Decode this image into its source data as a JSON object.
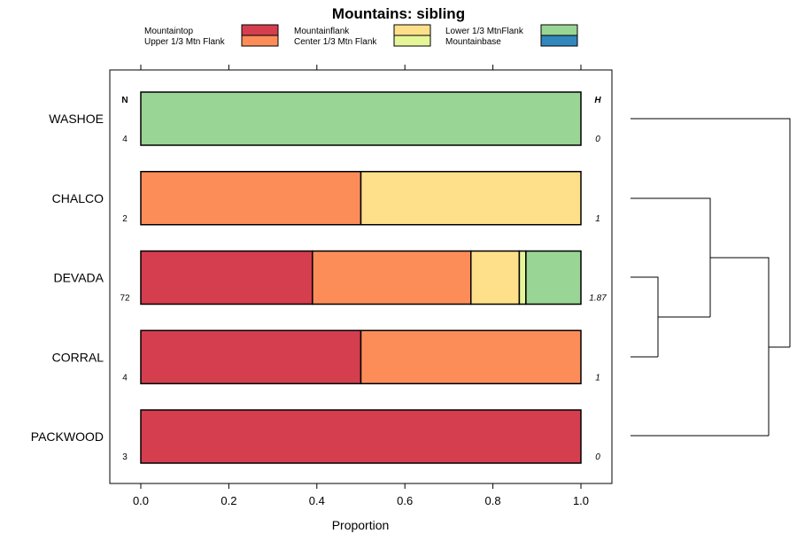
{
  "chart_data": {
    "type": "bar",
    "orientation": "horizontal",
    "stacked": true,
    "title": "Mountains: sibling",
    "xlabel": "Proportion",
    "ylabel": "",
    "xlim": [
      -0.07,
      1.07
    ],
    "x_ticks": [
      "0.0",
      "0.2",
      "0.4",
      "0.6",
      "0.8",
      "1.0"
    ],
    "x_tick_values": [
      0,
      0.2,
      0.4,
      0.6,
      0.8,
      1.0
    ],
    "categories": [
      "WASHOE",
      "CHALCO",
      "DEVADA",
      "CORRAL",
      "PACKWOOD"
    ],
    "series": [
      {
        "name": "Mountaintop",
        "color": "#d53e4f",
        "values": [
          0,
          0,
          0.39,
          0.5,
          1.0
        ]
      },
      {
        "name": "Upper 1/3 Mtn Flank",
        "color": "#fc8d59",
        "values": [
          0,
          0.5,
          0.36,
          0.5,
          0
        ]
      },
      {
        "name": "Mountainflank",
        "color": "#fee08b",
        "values": [
          0,
          0.5,
          0.11,
          0,
          0
        ]
      },
      {
        "name": "Center 1/3 Mtn Flank",
        "color": "#e6f598",
        "values": [
          0,
          0,
          0.015,
          0,
          0
        ]
      },
      {
        "name": "Lower 1/3 MtnFlank",
        "color": "#99d594",
        "values": [
          1.0,
          0,
          0.125,
          0,
          0
        ]
      },
      {
        "name": "Mountainbase",
        "color": "#3288bd",
        "values": [
          0,
          0,
          0,
          0,
          0
        ]
      }
    ],
    "n_header": "N",
    "h_header": "H",
    "n_values": [
      "4",
      "2",
      "72",
      "4",
      "3"
    ],
    "h_values": [
      "0",
      "1",
      "1.87",
      "1",
      "0"
    ],
    "legend_position": "top",
    "dendrogram": "right"
  }
}
